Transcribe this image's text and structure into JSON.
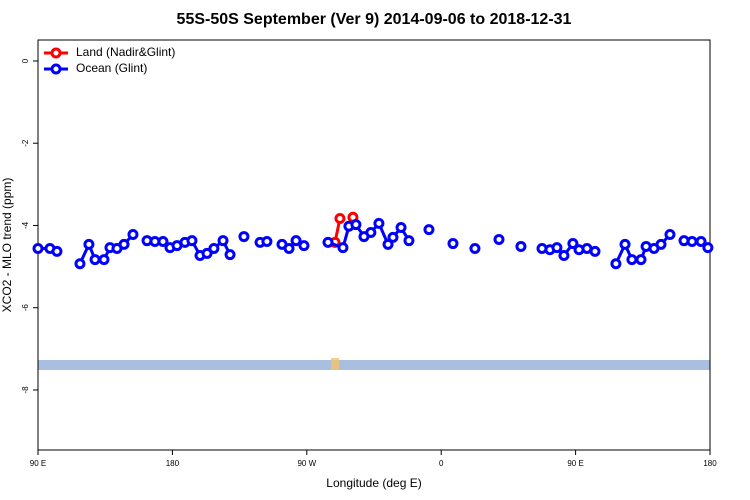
{
  "chart_data": {
    "type": "line",
    "title": "55S-50S September (Ver 9)   2014-09-06 to 2018-12-31",
    "x_label": "Longitude (deg E)",
    "y_label": "XCO2 - MLO trend (ppm)",
    "xlim": [
      90,
      540
    ],
    "xticks": [
      {
        "value": 90,
        "label": "90 E"
      },
      {
        "value": 180,
        "label": "180"
      },
      {
        "value": 270,
        "label": "90 W"
      },
      {
        "value": 360,
        "label": "0"
      },
      {
        "value": 450,
        "label": "90 E"
      },
      {
        "value": 540,
        "label": "180"
      }
    ],
    "ylim": [
      -9.46,
      0.51
    ],
    "yticks": [
      0,
      -2,
      -4,
      -6,
      -8
    ],
    "legend": "top-left",
    "series": [
      {
        "name": "Land (Nadir&Glint)",
        "color": "#ff0000",
        "x": [
          288.9,
          292.2,
          null,
          300.9
        ],
        "values": [
          -4.41,
          -3.83,
          null,
          -3.8
        ]
      },
      {
        "name": "Ocean (Glint)",
        "color": "#0000ff",
        "x": [
          90.0,
          98.0,
          102.7,
          null,
          118.1,
          124.1,
          128.2,
          134.2,
          138.2,
          142.9,
          147.6,
          153.6,
          null,
          163.0,
          168.3,
          173.7,
          178.4,
          183.1,
          188.4,
          193.1,
          198.5,
          203.2,
          207.8,
          213.9,
          218.6,
          null,
          227.9,
          null,
          238.7,
          243.3,
          null,
          253.4,
          258.1,
          262.8,
          268.1,
          null,
          284.2,
          294.2,
          298.2,
          302.9,
          308.3,
          312.9,
          318.3,
          324.4,
          327.7,
          333.1,
          338.4,
          null,
          351.8,
          null,
          367.9,
          null,
          382.6,
          null,
          398.7,
          null,
          413.4,
          null,
          427.5,
          432.8,
          437.5,
          442.2,
          448.2,
          452.3,
          457.6,
          463.0,
          null,
          477.0,
          483.1,
          487.7,
          493.8,
          497.2,
          502.5,
          507.2,
          513.2,
          null,
          522.6,
          528.0,
          534.0,
          538.6
        ],
        "values": [
          -4.56,
          -4.56,
          -4.63,
          null,
          -4.93,
          -4.46,
          -4.83,
          -4.83,
          -4.54,
          -4.56,
          -4.46,
          -4.22,
          null,
          -4.37,
          -4.39,
          -4.39,
          -4.54,
          -4.49,
          -4.41,
          -4.37,
          -4.73,
          -4.68,
          -4.56,
          -4.37,
          -4.71,
          null,
          -4.27,
          null,
          -4.41,
          -4.39,
          null,
          -4.46,
          -4.56,
          -4.37,
          -4.49,
          null,
          -4.41,
          -4.54,
          -4.02,
          -3.98,
          -4.27,
          -4.17,
          -3.95,
          -4.46,
          -4.29,
          -4.05,
          -4.37,
          null,
          -4.1,
          null,
          -4.44,
          null,
          -4.56,
          null,
          -4.34,
          null,
          -4.51,
          null,
          -4.56,
          -4.59,
          -4.54,
          -4.73,
          -4.44,
          -4.59,
          -4.56,
          -4.63,
          null,
          -4.93,
          -4.46,
          -4.83,
          -4.83,
          -4.51,
          -4.56,
          -4.46,
          -4.22,
          null,
          -4.37,
          -4.39,
          -4.39,
          -4.54
        ]
      }
    ]
  }
}
